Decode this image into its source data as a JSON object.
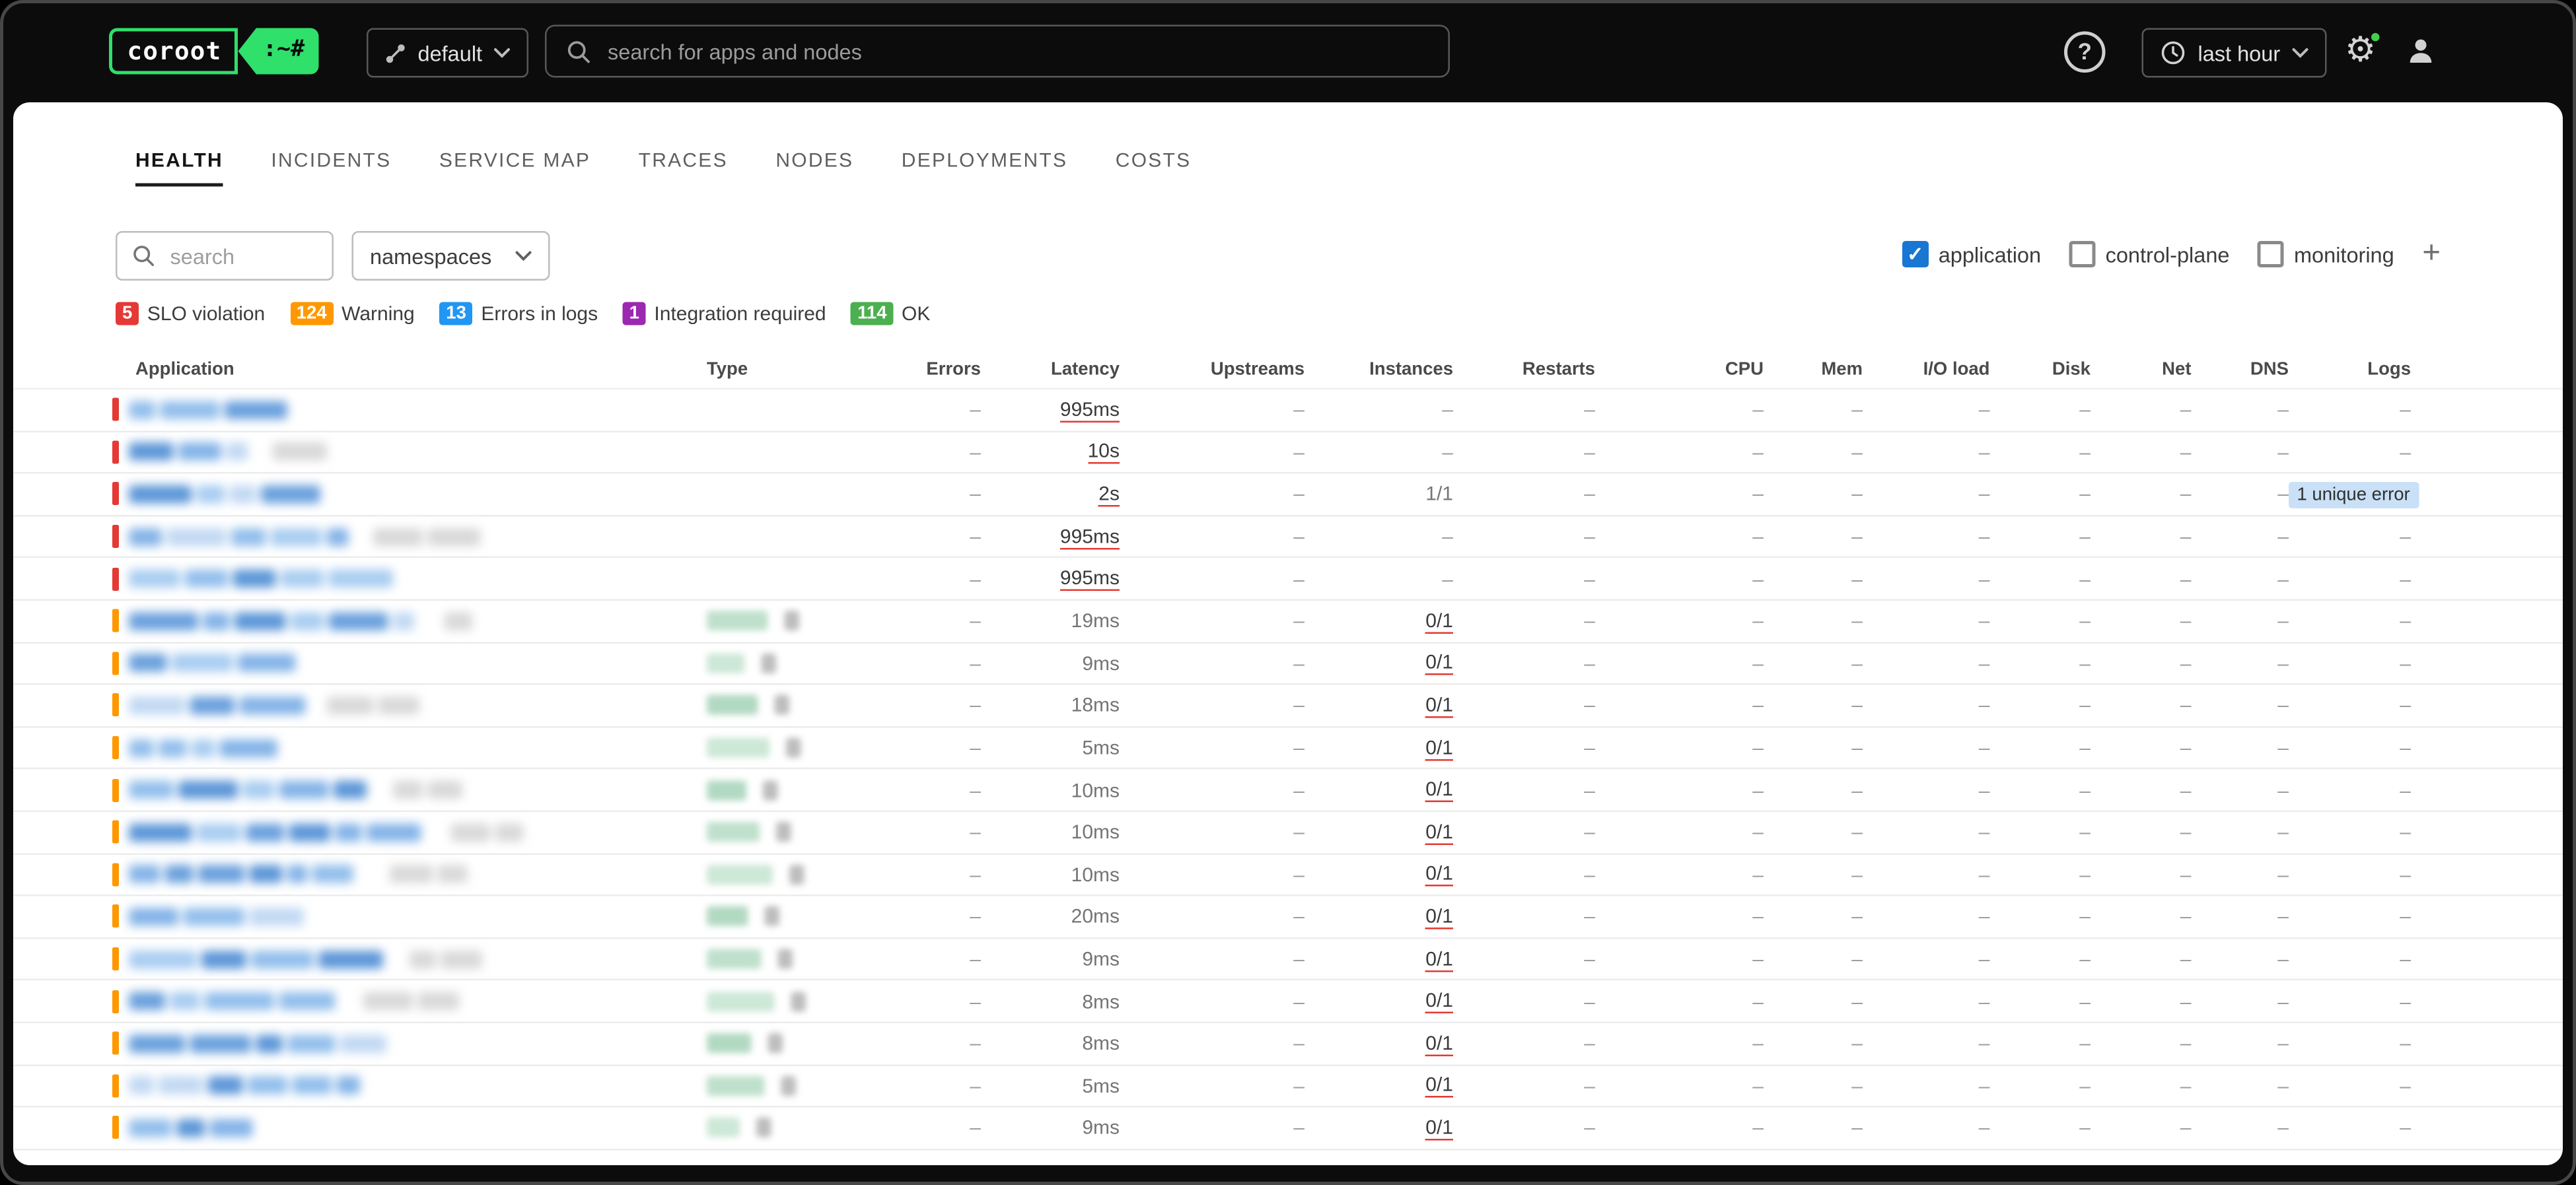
{
  "topbar": {
    "logo_text": "coroot",
    "logo_suffix": ":~#",
    "project_label": "default",
    "search_placeholder": "search for apps and nodes",
    "help_label": "?",
    "time_label": "last hour"
  },
  "tabs": [
    {
      "label": "HEALTH",
      "active": true
    },
    {
      "label": "INCIDENTS",
      "active": false
    },
    {
      "label": "SERVICE MAP",
      "active": false
    },
    {
      "label": "TRACES",
      "active": false
    },
    {
      "label": "NODES",
      "active": false
    },
    {
      "label": "DEPLOYMENTS",
      "active": false
    },
    {
      "label": "COSTS",
      "active": false
    }
  ],
  "filters": {
    "search_placeholder": "search",
    "namespaces_label": "namespaces",
    "categories": [
      {
        "label": "application",
        "checked": true
      },
      {
        "label": "control-plane",
        "checked": false
      },
      {
        "label": "monitoring",
        "checked": false
      }
    ],
    "add_category_label": "+"
  },
  "legend": [
    {
      "count": "5",
      "label": "SLO violation",
      "color": "#e53935"
    },
    {
      "count": "124",
      "label": "Warning",
      "color": "#ff9800"
    },
    {
      "count": "13",
      "label": "Errors in logs",
      "color": "#2196f3"
    },
    {
      "count": "1",
      "label": "Integration required",
      "color": "#9c27b0"
    },
    {
      "count": "114",
      "label": "OK",
      "color": "#4caf50"
    }
  ],
  "table": {
    "columns": [
      "Application",
      "Type",
      "Errors",
      "Latency",
      "Upstreams",
      "Instances",
      "Restarts",
      "CPU",
      "Mem",
      "I/O load",
      "Disk",
      "Net",
      "DNS",
      "Logs"
    ],
    "empty_value": "–",
    "severity_colors": {
      "critical": "#e53935",
      "warning": "#ff9800"
    },
    "rows": [
      {
        "severity": "critical",
        "application_redacted": true,
        "type_redacted": false,
        "latency": "995ms",
        "latency_alert": true,
        "instances": "",
        "instances_alert": false,
        "logs": ""
      },
      {
        "severity": "critical",
        "application_redacted": true,
        "type_redacted": false,
        "latency": "10s",
        "latency_alert": true,
        "instances": "",
        "instances_alert": false,
        "logs": ""
      },
      {
        "severity": "critical",
        "application_redacted": true,
        "type_redacted": false,
        "latency": "2s",
        "latency_alert": true,
        "instances": "1/1",
        "instances_alert": false,
        "logs": "1 unique error"
      },
      {
        "severity": "critical",
        "application_redacted": true,
        "type_redacted": false,
        "latency": "995ms",
        "latency_alert": true,
        "instances": "",
        "instances_alert": false,
        "logs": ""
      },
      {
        "severity": "critical",
        "application_redacted": true,
        "type_redacted": false,
        "latency": "995ms",
        "latency_alert": true,
        "instances": "",
        "instances_alert": false,
        "logs": ""
      },
      {
        "severity": "warning",
        "application_redacted": true,
        "type_redacted": true,
        "latency": "19ms",
        "latency_alert": false,
        "instances": "0/1",
        "instances_alert": true,
        "logs": ""
      },
      {
        "severity": "warning",
        "application_redacted": true,
        "type_redacted": true,
        "latency": "9ms",
        "latency_alert": false,
        "instances": "0/1",
        "instances_alert": true,
        "logs": ""
      },
      {
        "severity": "warning",
        "application_redacted": true,
        "type_redacted": true,
        "latency": "18ms",
        "latency_alert": false,
        "instances": "0/1",
        "instances_alert": true,
        "logs": ""
      },
      {
        "severity": "warning",
        "application_redacted": true,
        "type_redacted": true,
        "latency": "5ms",
        "latency_alert": false,
        "instances": "0/1",
        "instances_alert": true,
        "logs": ""
      },
      {
        "severity": "warning",
        "application_redacted": true,
        "type_redacted": true,
        "latency": "10ms",
        "latency_alert": false,
        "instances": "0/1",
        "instances_alert": true,
        "logs": ""
      },
      {
        "severity": "warning",
        "application_redacted": true,
        "type_redacted": true,
        "latency": "10ms",
        "latency_alert": false,
        "instances": "0/1",
        "instances_alert": true,
        "logs": ""
      },
      {
        "severity": "warning",
        "application_redacted": true,
        "type_redacted": true,
        "latency": "10ms",
        "latency_alert": false,
        "instances": "0/1",
        "instances_alert": true,
        "logs": ""
      },
      {
        "severity": "warning",
        "application_redacted": true,
        "type_redacted": true,
        "latency": "20ms",
        "latency_alert": false,
        "instances": "0/1",
        "instances_alert": true,
        "logs": ""
      },
      {
        "severity": "warning",
        "application_redacted": true,
        "type_redacted": true,
        "latency": "9ms",
        "latency_alert": false,
        "instances": "0/1",
        "instances_alert": true,
        "logs": ""
      },
      {
        "severity": "warning",
        "application_redacted": true,
        "type_redacted": true,
        "latency": "8ms",
        "latency_alert": false,
        "instances": "0/1",
        "instances_alert": true,
        "logs": ""
      },
      {
        "severity": "warning",
        "application_redacted": true,
        "type_redacted": true,
        "latency": "8ms",
        "latency_alert": false,
        "instances": "0/1",
        "instances_alert": true,
        "logs": ""
      },
      {
        "severity": "warning",
        "application_redacted": true,
        "type_redacted": true,
        "latency": "5ms",
        "latency_alert": false,
        "instances": "0/1",
        "instances_alert": true,
        "logs": ""
      },
      {
        "severity": "warning",
        "application_redacted": true,
        "type_redacted": true,
        "latency": "9ms",
        "latency_alert": false,
        "instances": "0/1",
        "instances_alert": true,
        "logs": ""
      }
    ]
  }
}
